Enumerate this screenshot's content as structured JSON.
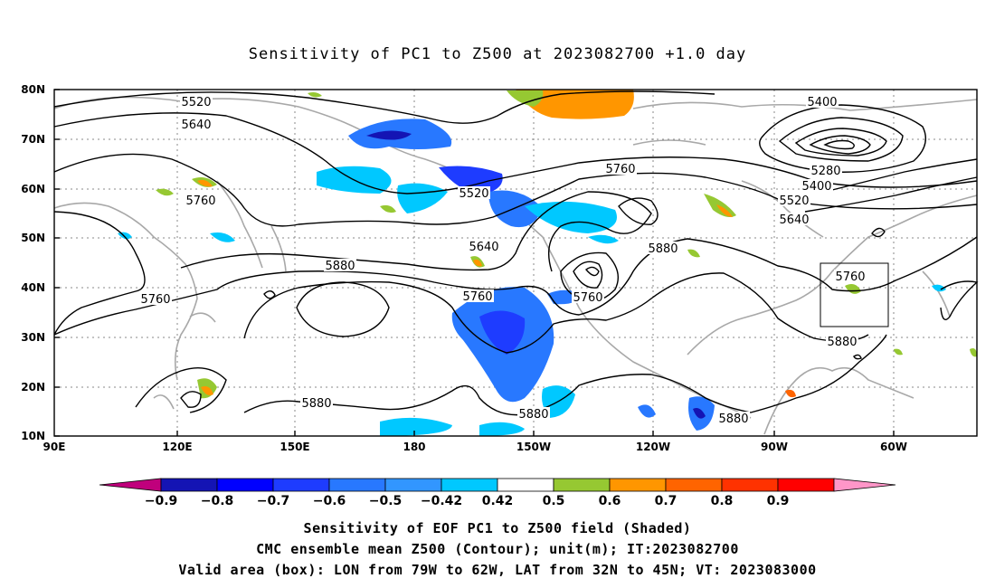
{
  "title": "Sensitivity of PC1 to Z500 at 2023082700 +1.0 day",
  "lat_labels": [
    "80N",
    "70N",
    "60N",
    "50N",
    "40N",
    "30N",
    "20N",
    "10N"
  ],
  "lon_labels": [
    "90E",
    "120E",
    "150E",
    "180",
    "150W",
    "120W",
    "90W",
    "60W"
  ],
  "contour_labels": [
    {
      "text": "5520"
    },
    {
      "text": "5640"
    },
    {
      "text": "5760"
    },
    {
      "text": "5760"
    },
    {
      "text": "5880"
    },
    {
      "text": "5520"
    },
    {
      "text": "5640"
    },
    {
      "text": "5760"
    },
    {
      "text": "5760"
    },
    {
      "text": "5880"
    },
    {
      "text": "5880"
    },
    {
      "text": "5880"
    },
    {
      "text": "5880"
    },
    {
      "text": "5760"
    },
    {
      "text": "5400"
    },
    {
      "text": "5280"
    },
    {
      "text": "5400"
    },
    {
      "text": "5520"
    },
    {
      "text": "5640"
    },
    {
      "text": "5760"
    },
    {
      "text": "5880"
    }
  ],
  "colorbar": {
    "labels": [
      "-0.9",
      "-0.8",
      "-0.7",
      "-0.6",
      "-0.5",
      "-0.42",
      "0.42",
      "0.5",
      "0.6",
      "0.7",
      "0.8",
      "0.9"
    ],
    "colors": [
      "#c0007c",
      "#1414b4",
      "#0000ff",
      "#1e3cff",
      "#2878ff",
      "#3296ff",
      "#00c8ff",
      "#ffffff",
      "#96c832",
      "#ff9600",
      "#ff6400",
      "#ff3200",
      "#ff0000",
      "#ff96c8"
    ]
  },
  "box_label": "Valid area (box): LON from 79W to 62W, LAT from 32N to 45N; VT: 2023083000",
  "caption_line1": "Sensitivity of EOF PC1 to Z500 field (Shaded)",
  "caption_line2": "CMC ensemble mean Z500 (Contour); unit(m); IT:2023082700",
  "caption_line3": "Valid area (box): LON from 79W to 62W, LAT from 32N to 45N; VT: 2023083000"
}
